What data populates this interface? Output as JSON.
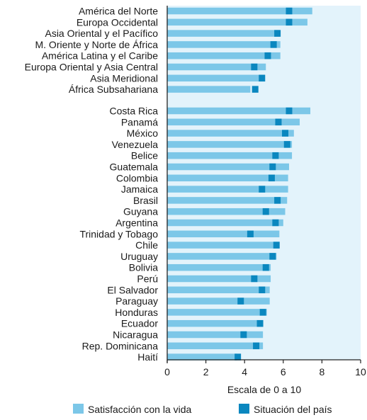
{
  "chart_data": {
    "type": "bar",
    "xlabel": "Escala de 0 a 10",
    "xlim": [
      0,
      10
    ],
    "xticks": [
      "0",
      "2",
      "4",
      "6",
      "8",
      "10"
    ],
    "colors": {
      "life": "#7cc7e8",
      "country": "#0a87bf",
      "plot_bg": "#e3f3fb",
      "axis": "#222222"
    },
    "groups": [
      {
        "categories": [
          "América del Norte",
          "Europa Occidental",
          "Asia Oriental y el Pacífico",
          "M. Oriente y Norte de África",
          "América Latina y el Caribe",
          "Europa Oriental y Asia Central",
          "Asia Meridional",
          "África Subsahariana"
        ],
        "life": [
          7.5,
          7.25,
          5.8,
          5.85,
          5.85,
          5.1,
          5.05,
          4.3
        ],
        "country": [
          6.3,
          6.3,
          5.7,
          5.5,
          5.2,
          4.5,
          4.9,
          4.55
        ]
      },
      {
        "categories": [
          "Costa Rica",
          "Panamá",
          "México",
          "Venezuela",
          "Belice",
          "Guatemala",
          "Colombia",
          "Jamaica",
          "Brasil",
          "Guyana",
          "Argentina",
          "Trinidad y Tobago",
          "Chile",
          "Uruguay",
          "Bolivia",
          "Perú",
          "El Salvador",
          "Paraguay",
          "Honduras",
          "Ecuador",
          "Nicaragua",
          "Rep. Dominicana",
          "Haití"
        ],
        "life": [
          7.4,
          6.85,
          6.55,
          6.45,
          6.45,
          6.3,
          6.25,
          6.25,
          6.2,
          6.1,
          6.0,
          5.8,
          5.8,
          5.65,
          5.35,
          5.35,
          5.3,
          5.3,
          5.15,
          4.95,
          4.95,
          4.95,
          3.6
        ],
        "country": [
          6.3,
          5.75,
          6.1,
          6.2,
          5.6,
          5.45,
          5.4,
          4.9,
          5.7,
          5.1,
          5.6,
          4.3,
          5.65,
          5.45,
          5.1,
          4.5,
          4.9,
          3.8,
          4.95,
          4.8,
          3.95,
          4.6,
          3.65
        ]
      }
    ],
    "legend": [
      "Satisfacción con la vida",
      "Situación del país"
    ],
    "legend_position": "bottom"
  }
}
